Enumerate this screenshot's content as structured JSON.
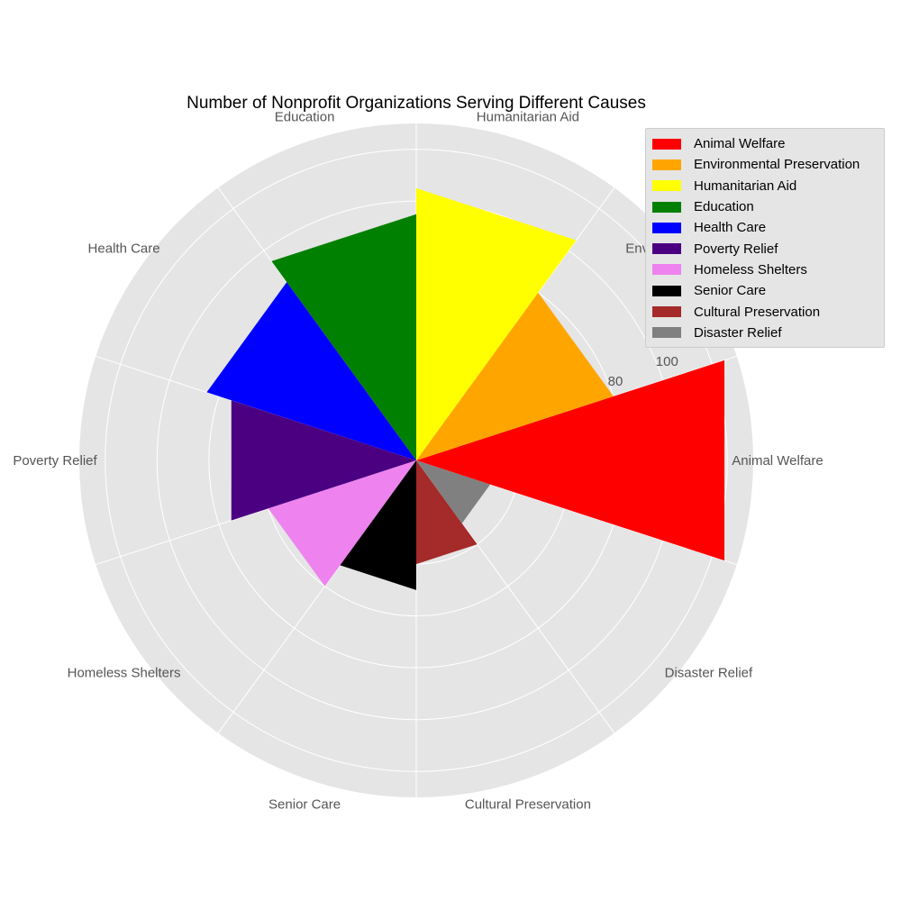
{
  "chart_data": {
    "type": "polar-bar",
    "title": "Number of Nonprofit Organizations Serving Different Causes",
    "categories": [
      "Animal Welfare",
      "Environmental Preservation",
      "Humanitarian Aid",
      "Education",
      "Health Care",
      "Poverty Relief",
      "Homeless Shelters",
      "Senior Care",
      "Cultural Preservation",
      "Disaster Relief"
    ],
    "values": [
      125,
      80,
      105,
      95,
      85,
      75,
      60,
      50,
      40,
      30
    ],
    "colors": [
      "#ff0000",
      "#ffa500",
      "#ffff00",
      "#008000",
      "#0000ff",
      "#4b0082",
      "#ee82ee",
      "#000000",
      "#a52a2a",
      "#808080"
    ],
    "radial_ticks": [
      80,
      100
    ],
    "rlim": [
      0,
      130
    ],
    "grid": true,
    "legend_position": "top-right"
  }
}
